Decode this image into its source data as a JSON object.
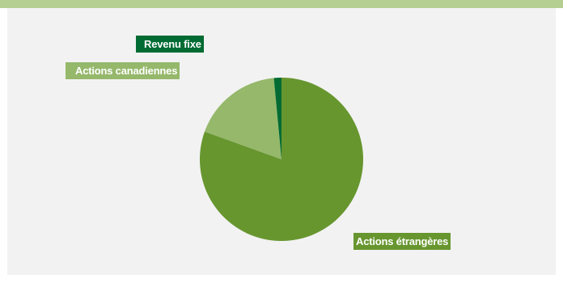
{
  "chart_data": {
    "type": "pie",
    "title": "",
    "slices": [
      {
        "label": "Actions étrangères",
        "value": 80.5,
        "color": "#67962f"
      },
      {
        "label": "Actions canadiennes",
        "value": 18.0,
        "color": "#95b86b"
      },
      {
        "label": "Revenu fixe",
        "value": 1.5,
        "color": "#006b32"
      }
    ],
    "start_angle_deg": 0,
    "direction": "clockwise",
    "legend": "none"
  },
  "colors": {
    "top_band": "#b5cf92",
    "panel_background": "#f2f2f2"
  }
}
